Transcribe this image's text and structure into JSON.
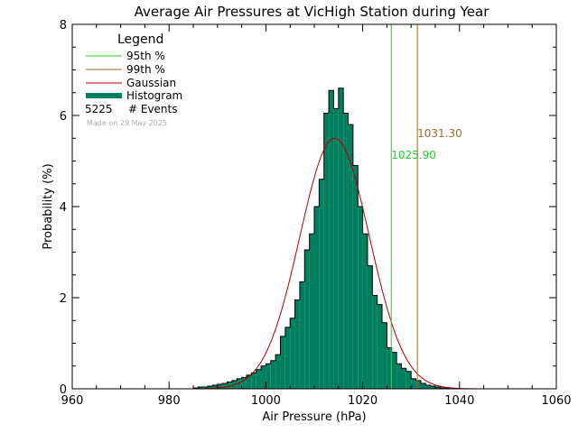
{
  "chart_data": {
    "type": "bar",
    "title": "Average Air Pressures at VicHigh Station during Year",
    "xlabel": "Air Pressure (hPa)",
    "ylabel": "Probability (%)",
    "xlim": [
      960,
      1060
    ],
    "ylim": [
      0,
      8
    ],
    "xticks": [
      960,
      980,
      1000,
      1020,
      1040,
      1060
    ],
    "yticks": [
      0,
      2,
      4,
      6,
      8
    ],
    "bin_width": 1,
    "histogram": {
      "name": "Histogram",
      "color": "#007f5f",
      "bins": [
        [
          985,
          0.02
        ],
        [
          986,
          0.04
        ],
        [
          987,
          0.04
        ],
        [
          988,
          0.06
        ],
        [
          989,
          0.08
        ],
        [
          990,
          0.1
        ],
        [
          991,
          0.12
        ],
        [
          992,
          0.15
        ],
        [
          993,
          0.18
        ],
        [
          994,
          0.22
        ],
        [
          995,
          0.25
        ],
        [
          996,
          0.3
        ],
        [
          997,
          0.35
        ],
        [
          998,
          0.42
        ],
        [
          999,
          0.5
        ],
        [
          1000,
          0.55
        ],
        [
          1001,
          0.62
        ],
        [
          1002,
          0.75
        ],
        [
          1003,
          1.15
        ],
        [
          1004,
          1.35
        ],
        [
          1005,
          1.55
        ],
        [
          1006,
          1.95
        ],
        [
          1007,
          2.35
        ],
        [
          1008,
          3.05
        ],
        [
          1009,
          3.4
        ],
        [
          1010,
          4.0
        ],
        [
          1011,
          4.6
        ],
        [
          1012,
          6.05
        ],
        [
          1013,
          6.55
        ],
        [
          1014,
          6.15
        ],
        [
          1015,
          6.6
        ],
        [
          1016,
          6.05
        ],
        [
          1017,
          5.8
        ],
        [
          1018,
          4.9
        ],
        [
          1019,
          4.0
        ],
        [
          1020,
          3.4
        ],
        [
          1021,
          2.7
        ],
        [
          1022,
          2.05
        ],
        [
          1023,
          1.85
        ],
        [
          1024,
          1.45
        ],
        [
          1025,
          0.9
        ],
        [
          1026,
          0.8
        ],
        [
          1027,
          0.55
        ],
        [
          1028,
          0.45
        ],
        [
          1029,
          0.38
        ],
        [
          1030,
          0.22
        ],
        [
          1031,
          0.18
        ],
        [
          1032,
          0.12
        ],
        [
          1033,
          0.08
        ],
        [
          1034,
          0.06
        ],
        [
          1035,
          0.04
        ],
        [
          1036,
          0.02
        ],
        [
          1037,
          0.01
        ]
      ]
    },
    "gaussian": {
      "name": "Gaussian",
      "color": "#b00000",
      "mean": 1014.2,
      "sigma": 7.2,
      "peak": 5.5
    },
    "percentiles": [
      {
        "name": "95th %",
        "value": 1025.9,
        "label": "1025.90",
        "color": "#1fd41f"
      },
      {
        "name": "99th %",
        "value": 1031.3,
        "label": "1031.30",
        "color": "#a0692c"
      }
    ],
    "legend": {
      "title": "Legend",
      "position": "top-left",
      "events_count": "5225",
      "events_label": "# Events",
      "made_on": "Made on 29 May 2025"
    },
    "grid": false
  }
}
